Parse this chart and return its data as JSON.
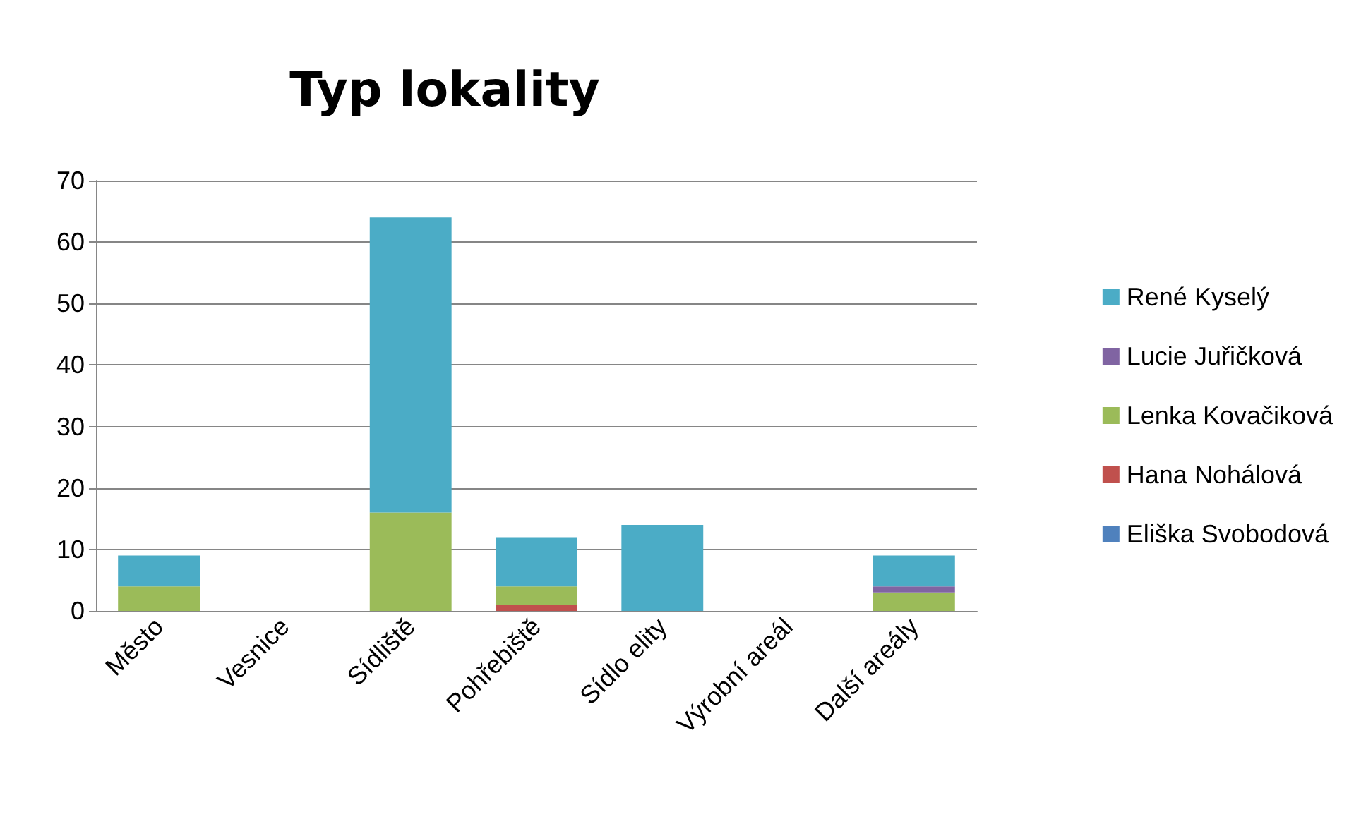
{
  "chart_data": {
    "type": "bar",
    "title": "Typ lokality",
    "stacked": true,
    "categories": [
      "Město",
      "Vesnice",
      "Sídliště",
      "Pohřebiště",
      "Sídlo elity",
      "Výrobní areál",
      "Další areály"
    ],
    "series": [
      {
        "name": "Eliška Svobodová",
        "color": "#4f81bd",
        "values": [
          0,
          0,
          0,
          0,
          0,
          0,
          0
        ]
      },
      {
        "name": "Hana Nohálová",
        "color": "#c0504d",
        "values": [
          0,
          0,
          0,
          1,
          0,
          0,
          0
        ]
      },
      {
        "name": "Lenka Kovačiková",
        "color": "#9bbb59",
        "values": [
          4,
          0,
          16,
          3,
          0,
          0,
          3
        ]
      },
      {
        "name": "Lucie Juřičková",
        "color": "#8064a2",
        "values": [
          0,
          0,
          0,
          0,
          0,
          0,
          1
        ]
      },
      {
        "name": "René Kyselý",
        "color": "#4bacc6",
        "values": [
          5,
          0,
          48,
          8,
          14,
          0,
          5
        ]
      }
    ],
    "ylim": [
      0,
      70
    ],
    "yticks": [
      0,
      10,
      20,
      30,
      40,
      50,
      60,
      70
    ],
    "grid": "y",
    "legend": "right"
  }
}
